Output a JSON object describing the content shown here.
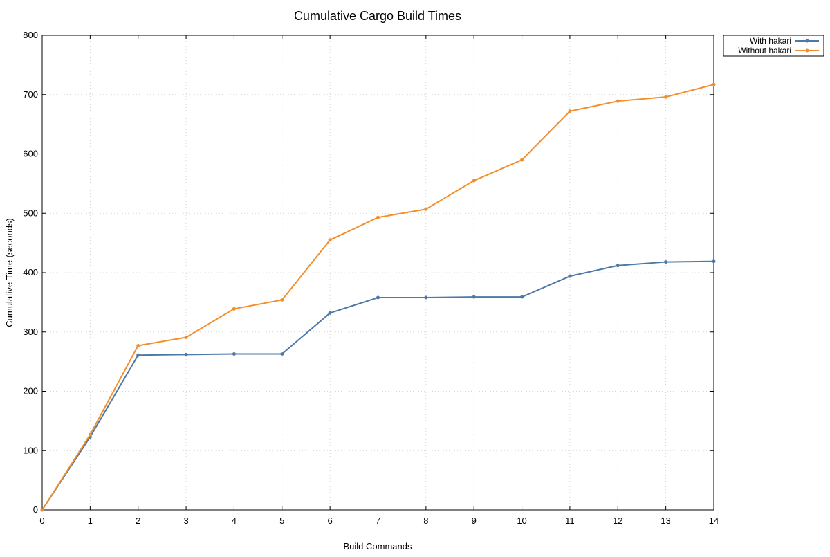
{
  "chart_data": {
    "type": "line",
    "title": "Cumulative Cargo Build Times",
    "xlabel": "Build Commands",
    "ylabel": "Cumulative Time (seconds)",
    "xlim": [
      0,
      14
    ],
    "ylim": [
      0,
      800
    ],
    "xticks": [
      0,
      1,
      2,
      3,
      4,
      5,
      6,
      7,
      8,
      9,
      10,
      11,
      12,
      13,
      14
    ],
    "yticks": [
      0,
      100,
      200,
      300,
      400,
      500,
      600,
      700,
      800
    ],
    "grid": true,
    "legend_position": "outside-top-right",
    "x": [
      0,
      1,
      2,
      3,
      4,
      5,
      6,
      7,
      8,
      9,
      10,
      11,
      12,
      13,
      14
    ],
    "series": [
      {
        "name": "With hakari",
        "color": "#4e79a7",
        "values": [
          0,
          123,
          261,
          262,
          263,
          263,
          332,
          358,
          358,
          359,
          359,
          394,
          412,
          418,
          419
        ]
      },
      {
        "name": "Without hakari",
        "color": "#f28e2b",
        "values": [
          0,
          127,
          277,
          291,
          339,
          354,
          455,
          493,
          507,
          555,
          590,
          672,
          689,
          696,
          717
        ]
      }
    ]
  }
}
